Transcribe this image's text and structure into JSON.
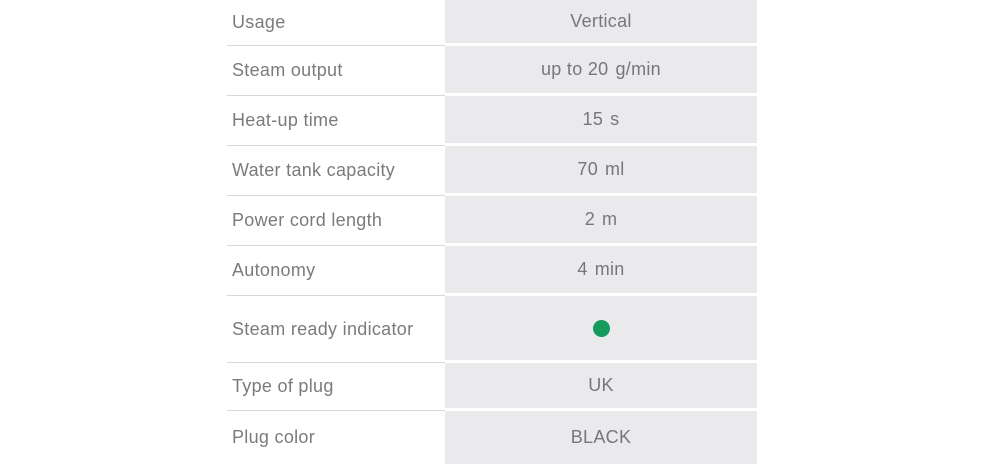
{
  "table": {
    "rows": [
      {
        "label": "Usage",
        "value": "Vertical",
        "unit": null
      },
      {
        "label": "Steam output",
        "value": "up to 20",
        "unit": "g/min"
      },
      {
        "label": "Heat-up time",
        "value": "15",
        "unit": "s"
      },
      {
        "label": "Water tank capacity",
        "value": "70",
        "unit": "ml"
      },
      {
        "label": "Power cord length",
        "value": "2",
        "unit": "m"
      },
      {
        "label": "Autonomy",
        "value": "4",
        "unit": "min"
      },
      {
        "label": "Steam ready indicator",
        "value": null,
        "unit": null,
        "indicator": "green-dot",
        "dot_style": "background:#169a5e"
      },
      {
        "label": "Type of plug",
        "value": "UK",
        "unit": null
      },
      {
        "label": "Plug color",
        "value": "BLACK",
        "unit": null
      }
    ]
  },
  "colors": {
    "page_background": "#ffffff",
    "value_column_background": "#eaeaec",
    "row_divider": "#d9d9db",
    "label_text": "#7b7b7f",
    "value_text": "#77777b",
    "indicator_green": "#169a5e"
  }
}
